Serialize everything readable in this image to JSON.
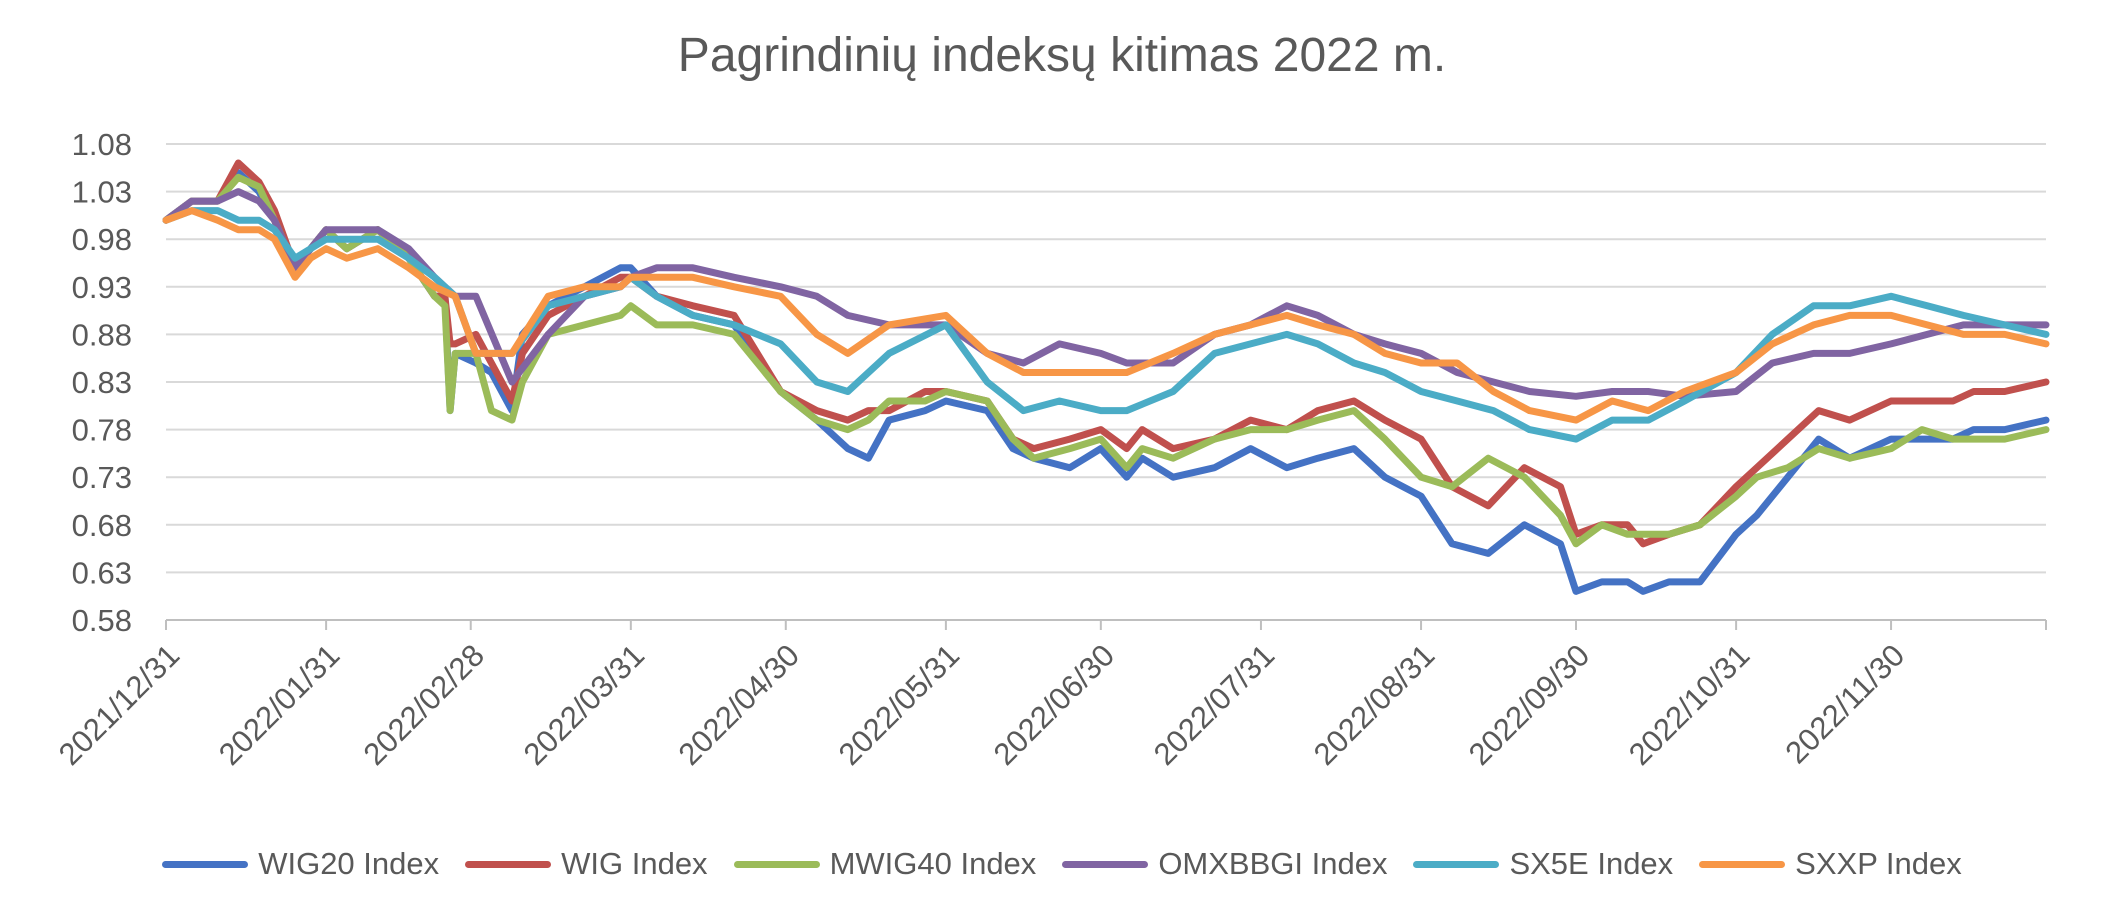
{
  "chart_data": {
    "type": "line",
    "title": "Pagrindinių indeksų kitimas 2022 m.",
    "xlabel": "",
    "ylabel": "",
    "x_ticks": [
      "2021/12/31",
      "2022/01/31",
      "2022/02/28",
      "2022/03/31",
      "2022/04/30",
      "2022/05/31",
      "2022/06/30",
      "2022/07/31",
      "2022/08/31",
      "2022/09/30",
      "2022/10/31",
      "2022/11/30"
    ],
    "x_range": [
      "2021-12-31",
      "2022-12-30"
    ],
    "y_ticks": [
      "0.58",
      "0.63",
      "0.68",
      "0.73",
      "0.78",
      "0.83",
      "0.88",
      "0.93",
      "0.98",
      "1.03",
      "1.08"
    ],
    "ylim": [
      0.58,
      1.08
    ],
    "grid": "horizontal",
    "legend_position": "bottom",
    "series": [
      {
        "name": "WIG20 Index",
        "color": "#4472C4",
        "dates": [
          "2021-12-31",
          "2022-01-05",
          "2022-01-10",
          "2022-01-14",
          "2022-01-18",
          "2022-01-21",
          "2022-01-25",
          "2022-01-28",
          "2022-01-31",
          "2022-02-04",
          "2022-02-10",
          "2022-02-16",
          "2022-02-21",
          "2022-02-23",
          "2022-02-24",
          "2022-02-25",
          "2022-03-01",
          "2022-03-04",
          "2022-03-08",
          "2022-03-10",
          "2022-03-15",
          "2022-03-22",
          "2022-03-29",
          "2022-03-31",
          "2022-04-05",
          "2022-04-12",
          "2022-04-20",
          "2022-04-29",
          "2022-05-06",
          "2022-05-12",
          "2022-05-16",
          "2022-05-20",
          "2022-05-27",
          "2022-05-31",
          "2022-06-08",
          "2022-06-13",
          "2022-06-17",
          "2022-06-24",
          "2022-06-30",
          "2022-07-05",
          "2022-07-08",
          "2022-07-14",
          "2022-07-22",
          "2022-07-29",
          "2022-08-05",
          "2022-08-11",
          "2022-08-18",
          "2022-08-24",
          "2022-08-31",
          "2022-09-06",
          "2022-09-13",
          "2022-09-20",
          "2022-09-27",
          "2022-09-30",
          "2022-10-05",
          "2022-10-10",
          "2022-10-13",
          "2022-10-18",
          "2022-10-24",
          "2022-10-31",
          "2022-11-04",
          "2022-11-10",
          "2022-11-16",
          "2022-11-22",
          "2022-11-30",
          "2022-12-06",
          "2022-12-12",
          "2022-12-16",
          "2022-12-22",
          "2022-12-30"
        ],
        "values": [
          1.0,
          1.02,
          1.02,
          1.05,
          1.03,
          1.0,
          0.95,
          0.97,
          0.99,
          0.97,
          0.99,
          0.96,
          0.92,
          0.92,
          0.8,
          0.86,
          0.85,
          0.84,
          0.8,
          0.88,
          0.91,
          0.93,
          0.95,
          0.95,
          0.92,
          0.9,
          0.89,
          0.82,
          0.79,
          0.76,
          0.75,
          0.79,
          0.8,
          0.81,
          0.8,
          0.76,
          0.75,
          0.74,
          0.76,
          0.73,
          0.75,
          0.73,
          0.74,
          0.76,
          0.74,
          0.75,
          0.76,
          0.73,
          0.71,
          0.66,
          0.65,
          0.68,
          0.66,
          0.61,
          0.62,
          0.62,
          0.61,
          0.62,
          0.62,
          0.67,
          0.69,
          0.73,
          0.77,
          0.75,
          0.77,
          0.77,
          0.77,
          0.78,
          0.78,
          0.79
        ]
      },
      {
        "name": "WIG Index",
        "color": "#C0504D",
        "dates": [
          "2021-12-31",
          "2022-01-05",
          "2022-01-10",
          "2022-01-14",
          "2022-01-18",
          "2022-01-21",
          "2022-01-25",
          "2022-01-28",
          "2022-01-31",
          "2022-02-04",
          "2022-02-10",
          "2022-02-16",
          "2022-02-21",
          "2022-02-23",
          "2022-02-24",
          "2022-02-25",
          "2022-03-01",
          "2022-03-04",
          "2022-03-08",
          "2022-03-10",
          "2022-03-15",
          "2022-03-22",
          "2022-03-29",
          "2022-03-31",
          "2022-04-05",
          "2022-04-12",
          "2022-04-20",
          "2022-04-29",
          "2022-05-06",
          "2022-05-12",
          "2022-05-16",
          "2022-05-20",
          "2022-05-27",
          "2022-05-31",
          "2022-06-08",
          "2022-06-13",
          "2022-06-17",
          "2022-06-24",
          "2022-06-30",
          "2022-07-05",
          "2022-07-08",
          "2022-07-14",
          "2022-07-22",
          "2022-07-29",
          "2022-08-05",
          "2022-08-11",
          "2022-08-18",
          "2022-08-24",
          "2022-08-31",
          "2022-09-06",
          "2022-09-13",
          "2022-09-20",
          "2022-09-27",
          "2022-09-30",
          "2022-10-05",
          "2022-10-10",
          "2022-10-13",
          "2022-10-18",
          "2022-10-24",
          "2022-10-31",
          "2022-11-04",
          "2022-11-10",
          "2022-11-16",
          "2022-11-22",
          "2022-11-30",
          "2022-12-06",
          "2022-12-12",
          "2022-12-16",
          "2022-12-22",
          "2022-12-30"
        ],
        "values": [
          1.0,
          1.02,
          1.02,
          1.06,
          1.04,
          1.01,
          0.95,
          0.97,
          0.99,
          0.97,
          0.99,
          0.96,
          0.92,
          0.92,
          0.87,
          0.87,
          0.88,
          0.85,
          0.81,
          0.86,
          0.9,
          0.92,
          0.94,
          0.94,
          0.92,
          0.91,
          0.9,
          0.82,
          0.8,
          0.79,
          0.8,
          0.8,
          0.82,
          0.82,
          0.81,
          0.77,
          0.76,
          0.77,
          0.78,
          0.76,
          0.78,
          0.76,
          0.77,
          0.79,
          0.78,
          0.8,
          0.81,
          0.79,
          0.77,
          0.72,
          0.7,
          0.74,
          0.72,
          0.67,
          0.68,
          0.68,
          0.66,
          0.67,
          0.68,
          0.72,
          0.74,
          0.77,
          0.8,
          0.79,
          0.81,
          0.81,
          0.81,
          0.82,
          0.82,
          0.83
        ]
      },
      {
        "name": "MWIG40 Index",
        "color": "#9BBB59",
        "dates": [
          "2021-12-31",
          "2022-01-05",
          "2022-01-10",
          "2022-01-14",
          "2022-01-18",
          "2022-01-21",
          "2022-01-25",
          "2022-01-28",
          "2022-01-31",
          "2022-02-04",
          "2022-02-10",
          "2022-02-16",
          "2022-02-21",
          "2022-02-23",
          "2022-02-24",
          "2022-02-25",
          "2022-03-01",
          "2022-03-04",
          "2022-03-08",
          "2022-03-10",
          "2022-03-15",
          "2022-03-22",
          "2022-03-29",
          "2022-03-31",
          "2022-04-05",
          "2022-04-12",
          "2022-04-20",
          "2022-04-29",
          "2022-05-06",
          "2022-05-12",
          "2022-05-16",
          "2022-05-20",
          "2022-05-27",
          "2022-05-31",
          "2022-06-08",
          "2022-06-13",
          "2022-06-17",
          "2022-06-24",
          "2022-06-30",
          "2022-07-05",
          "2022-07-08",
          "2022-07-14",
          "2022-07-22",
          "2022-07-29",
          "2022-08-05",
          "2022-08-11",
          "2022-08-18",
          "2022-08-24",
          "2022-08-31",
          "2022-09-06",
          "2022-09-13",
          "2022-09-20",
          "2022-09-27",
          "2022-09-30",
          "2022-10-05",
          "2022-10-10",
          "2022-10-13",
          "2022-10-18",
          "2022-10-24",
          "2022-10-31",
          "2022-11-04",
          "2022-11-10",
          "2022-11-16",
          "2022-11-22",
          "2022-11-30",
          "2022-12-06",
          "2022-12-12",
          "2022-12-16",
          "2022-12-22",
          "2022-12-30"
        ],
        "values": [
          1.0,
          1.02,
          1.02,
          1.045,
          1.035,
          1.0,
          0.95,
          0.97,
          0.99,
          0.97,
          0.99,
          0.96,
          0.92,
          0.91,
          0.8,
          0.86,
          0.86,
          0.8,
          0.79,
          0.83,
          0.88,
          0.89,
          0.9,
          0.91,
          0.89,
          0.89,
          0.88,
          0.82,
          0.79,
          0.78,
          0.79,
          0.81,
          0.81,
          0.82,
          0.81,
          0.77,
          0.75,
          0.76,
          0.77,
          0.74,
          0.76,
          0.75,
          0.77,
          0.78,
          0.78,
          0.79,
          0.8,
          0.77,
          0.73,
          0.72,
          0.75,
          0.73,
          0.69,
          0.66,
          0.68,
          0.67,
          0.67,
          0.67,
          0.68,
          0.71,
          0.73,
          0.74,
          0.76,
          0.75,
          0.76,
          0.78,
          0.77,
          0.77,
          0.77,
          0.78
        ]
      },
      {
        "name": "OMXBBGI Index",
        "color": "#8064A2",
        "dates": [
          "2021-12-31",
          "2022-01-05",
          "2022-01-10",
          "2022-01-14",
          "2022-01-18",
          "2022-01-21",
          "2022-01-25",
          "2022-01-28",
          "2022-01-31",
          "2022-02-04",
          "2022-02-10",
          "2022-02-16",
          "2022-02-21",
          "2022-02-25",
          "2022-03-01",
          "2022-03-08",
          "2022-03-15",
          "2022-03-22",
          "2022-03-29",
          "2022-03-31",
          "2022-04-05",
          "2022-04-12",
          "2022-04-20",
          "2022-04-29",
          "2022-05-06",
          "2022-05-12",
          "2022-05-20",
          "2022-05-31",
          "2022-06-08",
          "2022-06-15",
          "2022-06-22",
          "2022-06-30",
          "2022-07-05",
          "2022-07-14",
          "2022-07-22",
          "2022-07-29",
          "2022-08-05",
          "2022-08-11",
          "2022-08-18",
          "2022-08-24",
          "2022-08-31",
          "2022-09-07",
          "2022-09-14",
          "2022-09-21",
          "2022-09-30",
          "2022-10-07",
          "2022-10-14",
          "2022-10-21",
          "2022-10-31",
          "2022-11-07",
          "2022-11-15",
          "2022-11-22",
          "2022-11-30",
          "2022-12-07",
          "2022-12-14",
          "2022-12-22",
          "2022-12-30"
        ],
        "values": [
          1.0,
          1.02,
          1.02,
          1.03,
          1.02,
          1.0,
          0.95,
          0.97,
          0.99,
          0.99,
          0.99,
          0.97,
          0.94,
          0.92,
          0.92,
          0.83,
          0.88,
          0.92,
          0.93,
          0.94,
          0.95,
          0.95,
          0.94,
          0.93,
          0.92,
          0.9,
          0.89,
          0.89,
          0.86,
          0.85,
          0.87,
          0.86,
          0.85,
          0.85,
          0.88,
          0.89,
          0.91,
          0.9,
          0.88,
          0.87,
          0.86,
          0.84,
          0.83,
          0.82,
          0.815,
          0.82,
          0.82,
          0.815,
          0.82,
          0.85,
          0.86,
          0.86,
          0.87,
          0.88,
          0.89,
          0.89,
          0.89
        ]
      },
      {
        "name": "SX5E Index",
        "color": "#4BACC6",
        "dates": [
          "2021-12-31",
          "2022-01-05",
          "2022-01-10",
          "2022-01-14",
          "2022-01-18",
          "2022-01-21",
          "2022-01-25",
          "2022-01-28",
          "2022-01-31",
          "2022-02-04",
          "2022-02-10",
          "2022-02-16",
          "2022-02-21",
          "2022-02-25",
          "2022-03-01",
          "2022-03-08",
          "2022-03-15",
          "2022-03-22",
          "2022-03-29",
          "2022-03-31",
          "2022-04-05",
          "2022-04-12",
          "2022-04-20",
          "2022-04-29",
          "2022-05-06",
          "2022-05-12",
          "2022-05-20",
          "2022-05-31",
          "2022-06-08",
          "2022-06-15",
          "2022-06-22",
          "2022-06-30",
          "2022-07-05",
          "2022-07-14",
          "2022-07-22",
          "2022-07-29",
          "2022-08-05",
          "2022-08-11",
          "2022-08-18",
          "2022-08-24",
          "2022-08-31",
          "2022-09-07",
          "2022-09-14",
          "2022-09-21",
          "2022-09-30",
          "2022-10-07",
          "2022-10-14",
          "2022-10-21",
          "2022-10-31",
          "2022-11-07",
          "2022-11-15",
          "2022-11-22",
          "2022-11-30",
          "2022-12-07",
          "2022-12-14",
          "2022-12-22",
          "2022-12-30"
        ],
        "values": [
          1.0,
          1.01,
          1.01,
          1.0,
          1.0,
          0.99,
          0.96,
          0.97,
          0.98,
          0.98,
          0.98,
          0.96,
          0.94,
          0.92,
          0.86,
          0.86,
          0.91,
          0.92,
          0.93,
          0.94,
          0.92,
          0.9,
          0.89,
          0.87,
          0.83,
          0.82,
          0.86,
          0.89,
          0.83,
          0.8,
          0.81,
          0.8,
          0.8,
          0.82,
          0.86,
          0.87,
          0.88,
          0.87,
          0.85,
          0.84,
          0.82,
          0.81,
          0.8,
          0.78,
          0.77,
          0.79,
          0.79,
          0.81,
          0.84,
          0.88,
          0.91,
          0.91,
          0.92,
          0.91,
          0.9,
          0.89,
          0.88
        ]
      },
      {
        "name": "SXXP Index",
        "color": "#F79646",
        "dates": [
          "2021-12-31",
          "2022-01-05",
          "2022-01-10",
          "2022-01-14",
          "2022-01-18",
          "2022-01-21",
          "2022-01-25",
          "2022-01-28",
          "2022-01-31",
          "2022-02-04",
          "2022-02-10",
          "2022-02-16",
          "2022-02-21",
          "2022-02-25",
          "2022-03-01",
          "2022-03-08",
          "2022-03-15",
          "2022-03-22",
          "2022-03-29",
          "2022-03-31",
          "2022-04-05",
          "2022-04-12",
          "2022-04-20",
          "2022-04-29",
          "2022-05-06",
          "2022-05-12",
          "2022-05-20",
          "2022-05-31",
          "2022-06-08",
          "2022-06-15",
          "2022-06-22",
          "2022-06-30",
          "2022-07-05",
          "2022-07-14",
          "2022-07-22",
          "2022-07-29",
          "2022-08-05",
          "2022-08-11",
          "2022-08-18",
          "2022-08-24",
          "2022-08-31",
          "2022-09-07",
          "2022-09-14",
          "2022-09-21",
          "2022-09-30",
          "2022-10-07",
          "2022-10-14",
          "2022-10-21",
          "2022-10-31",
          "2022-11-07",
          "2022-11-15",
          "2022-11-22",
          "2022-11-30",
          "2022-12-07",
          "2022-12-14",
          "2022-12-22",
          "2022-12-30"
        ],
        "values": [
          1.0,
          1.01,
          1.0,
          0.99,
          0.99,
          0.98,
          0.94,
          0.96,
          0.97,
          0.96,
          0.97,
          0.95,
          0.93,
          0.92,
          0.86,
          0.86,
          0.92,
          0.93,
          0.93,
          0.94,
          0.94,
          0.94,
          0.93,
          0.92,
          0.88,
          0.86,
          0.89,
          0.9,
          0.86,
          0.84,
          0.84,
          0.84,
          0.84,
          0.86,
          0.88,
          0.89,
          0.9,
          0.89,
          0.88,
          0.86,
          0.85,
          0.85,
          0.82,
          0.8,
          0.79,
          0.81,
          0.8,
          0.82,
          0.84,
          0.87,
          0.89,
          0.9,
          0.9,
          0.89,
          0.88,
          0.88,
          0.87
        ]
      }
    ]
  }
}
